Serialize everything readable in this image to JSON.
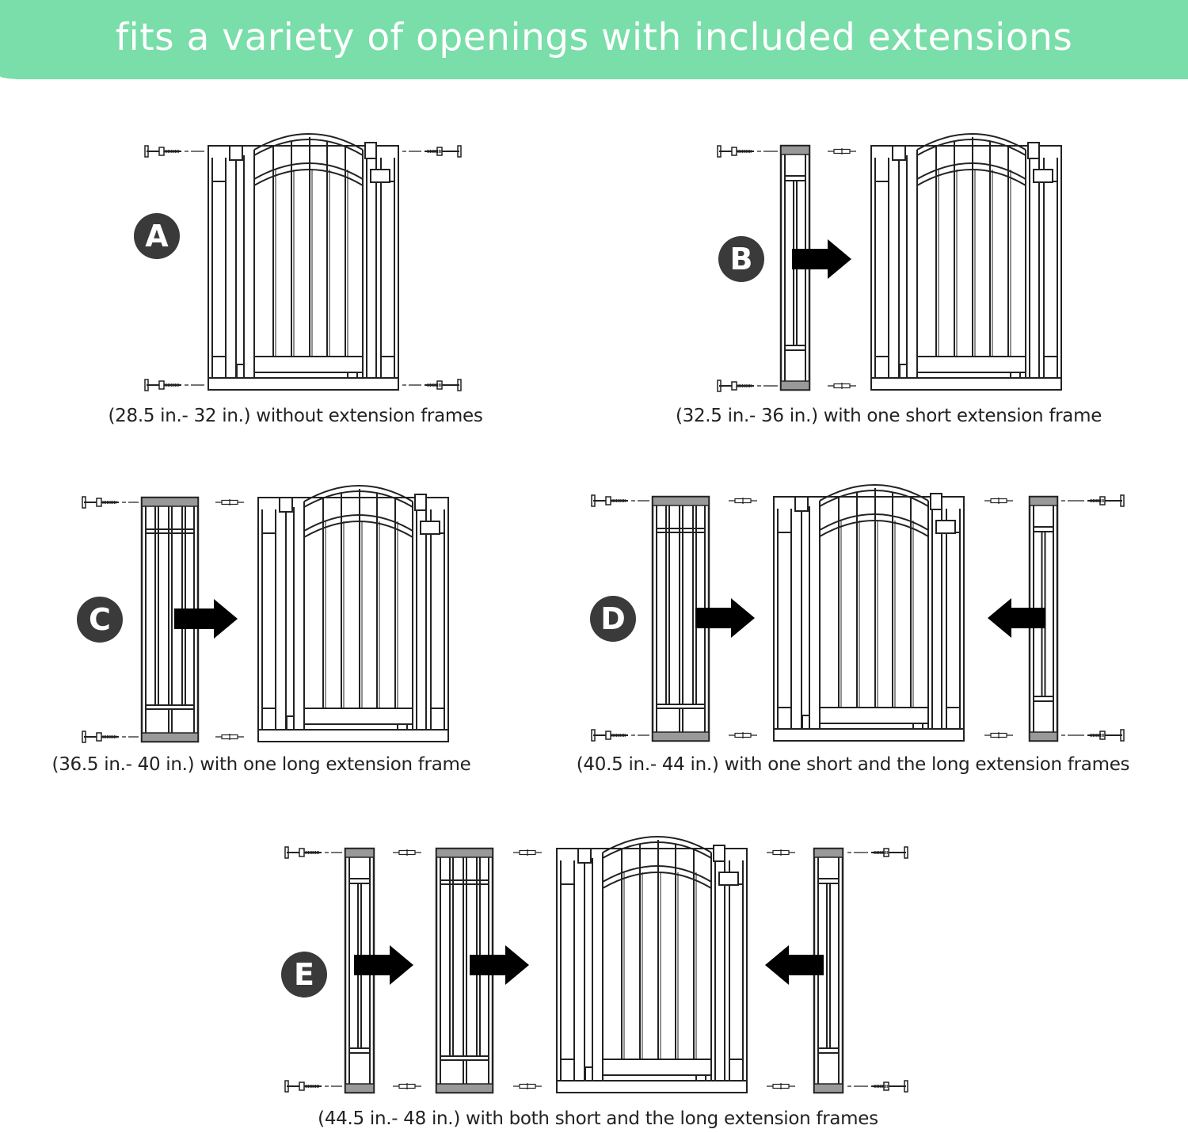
{
  "header": {
    "title": "fits a variety of openings with included extensions",
    "background_color": "#79dea9"
  },
  "colors": {
    "line": "#222222",
    "frame_cap_gray": "#999999",
    "badge": "#3a3a3a",
    "arrow": "#000000"
  },
  "configurations": [
    {
      "label": "A",
      "caption": "(28.5 in.- 32 in.) without extension frames"
    },
    {
      "label": "B",
      "caption": "(32.5 in.- 36 in.) with one short extension frame"
    },
    {
      "label": "C",
      "caption": "(36.5 in.- 40 in.) with one long extension frame"
    },
    {
      "label": "D",
      "caption": "(40.5 in.- 44 in.) with one short and the long extension frames"
    },
    {
      "label": "E",
      "caption": "(44.5 in.- 48 in.) with both short and the long extension frames"
    }
  ]
}
